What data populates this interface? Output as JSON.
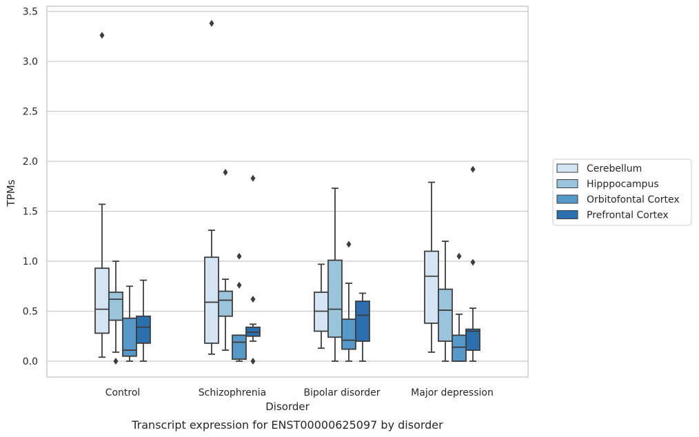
{
  "chart_data": {
    "type": "box",
    "caption": "Transcript expression for ENST00000625097 by disorder",
    "xlabel": "Disorder",
    "ylabel": "TPMs",
    "ylim": [
      -0.17,
      3.56
    ],
    "yticks": [
      0.0,
      0.5,
      1.0,
      1.5,
      2.0,
      2.5,
      3.0,
      3.5
    ],
    "ytick_labels": [
      "0.0",
      "0.5",
      "1.0",
      "1.5",
      "2.0",
      "2.5",
      "3.0",
      "3.5"
    ],
    "grid": true,
    "legend_position": "right",
    "categories": [
      "Control",
      "Schizophrenia",
      "Bipolar disorder",
      "Major depression"
    ],
    "series": [
      {
        "name": "Cerebellum",
        "color": "#d4e4f2",
        "boxes": [
          {
            "whisker_low": 0.04,
            "q1": 0.28,
            "median": 0.52,
            "q3": 0.93,
            "whisker_high": 1.57,
            "outliers": [
              3.26
            ]
          },
          {
            "whisker_low": 0.07,
            "q1": 0.18,
            "median": 0.59,
            "q3": 1.04,
            "whisker_high": 1.31,
            "outliers": [
              3.38
            ]
          },
          {
            "whisker_low": 0.13,
            "q1": 0.3,
            "median": 0.5,
            "q3": 0.69,
            "whisker_high": 0.97,
            "outliers": []
          },
          {
            "whisker_low": 0.09,
            "q1": 0.38,
            "median": 0.85,
            "q3": 1.1,
            "whisker_high": 1.79,
            "outliers": []
          }
        ]
      },
      {
        "name": "Hipppocampus",
        "color": "#9ac3dc",
        "boxes": [
          {
            "whisker_low": 0.09,
            "q1": 0.41,
            "median": 0.62,
            "q3": 0.69,
            "whisker_high": 1.0,
            "outliers": [
              0.0
            ]
          },
          {
            "whisker_low": 0.11,
            "q1": 0.45,
            "median": 0.61,
            "q3": 0.7,
            "whisker_high": 0.82,
            "outliers": [
              1.89
            ]
          },
          {
            "whisker_low": 0.0,
            "q1": 0.24,
            "median": 0.52,
            "q3": 1.01,
            "whisker_high": 1.73,
            "outliers": []
          },
          {
            "whisker_low": 0.0,
            "q1": 0.2,
            "median": 0.51,
            "q3": 0.72,
            "whisker_high": 1.2,
            "outliers": []
          }
        ]
      },
      {
        "name": "Orbitofontal Cortex",
        "color": "#5698c8",
        "boxes": [
          {
            "whisker_low": 0.0,
            "q1": 0.05,
            "median": 0.11,
            "q3": 0.43,
            "whisker_high": 0.75,
            "outliers": []
          },
          {
            "whisker_low": 0.0,
            "q1": 0.02,
            "median": 0.19,
            "q3": 0.26,
            "whisker_high": 0.26,
            "outliers": [
              1.05,
              0.76
            ]
          },
          {
            "whisker_low": 0.0,
            "q1": 0.12,
            "median": 0.21,
            "q3": 0.42,
            "whisker_high": 0.78,
            "outliers": [
              1.17
            ]
          },
          {
            "whisker_low": 0.0,
            "q1": 0.0,
            "median": 0.14,
            "q3": 0.26,
            "whisker_high": 0.47,
            "outliers": [
              1.05
            ]
          }
        ]
      },
      {
        "name": "Prefrontal Cortex",
        "color": "#2c6faf",
        "boxes": [
          {
            "whisker_low": 0.0,
            "q1": 0.18,
            "median": 0.34,
            "q3": 0.45,
            "whisker_high": 0.81,
            "outliers": []
          },
          {
            "whisker_low": 0.2,
            "q1": 0.25,
            "median": 0.29,
            "q3": 0.34,
            "whisker_high": 0.37,
            "outliers": [
              1.83,
              0.62,
              0.0
            ]
          },
          {
            "whisker_low": 0.0,
            "q1": 0.2,
            "median": 0.46,
            "q3": 0.6,
            "whisker_high": 0.68,
            "outliers": []
          },
          {
            "whisker_low": 0.0,
            "q1": 0.11,
            "median": 0.3,
            "q3": 0.32,
            "whisker_high": 0.53,
            "outliers": [
              1.92,
              0.99
            ]
          }
        ]
      }
    ]
  }
}
